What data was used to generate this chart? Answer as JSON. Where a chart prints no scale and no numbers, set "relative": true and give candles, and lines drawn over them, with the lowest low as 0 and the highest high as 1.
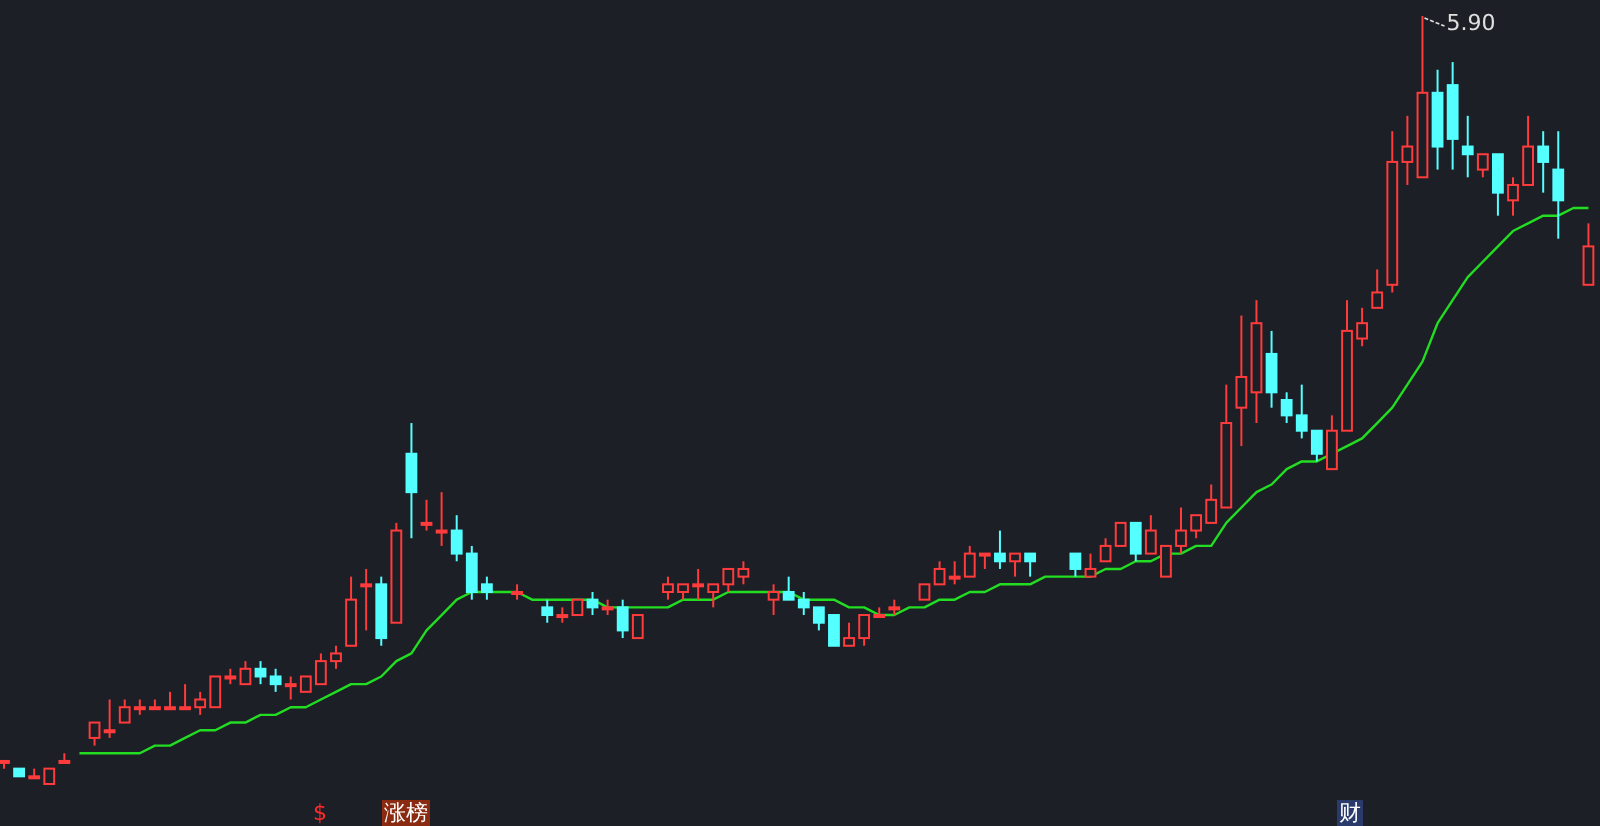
{
  "chart_data": {
    "type": "candlestick",
    "relative": true,
    "categories": [
      null,
      null,
      null,
      null,
      null,
      null,
      null,
      null,
      null,
      null,
      null,
      null,
      null,
      null,
      null,
      null,
      null,
      null,
      null,
      null,
      null,
      null,
      null,
      null,
      null,
      null,
      null,
      null,
      null,
      null,
      null,
      null,
      null,
      null,
      null,
      null,
      null,
      null,
      null,
      null,
      null,
      null,
      null,
      null,
      null,
      null,
      null,
      null,
      null,
      null,
      null,
      null,
      null,
      null,
      null,
      null,
      null,
      null,
      null,
      null,
      null,
      null,
      null,
      null,
      null,
      null,
      null,
      null,
      null,
      null,
      null,
      null,
      null,
      null,
      null,
      null,
      null,
      null,
      null,
      null,
      null,
      null,
      null,
      null,
      null,
      null,
      null,
      null,
      null,
      null,
      null,
      null,
      null,
      null,
      null,
      null,
      null,
      null,
      null,
      null,
      null,
      null,
      null,
      null,
      null,
      null
    ],
    "ohlc": [
      [
        0.03,
        0.03,
        0.02,
        0.03
      ],
      [
        0.02,
        0.02,
        0.01,
        0.01
      ],
      [
        0.01,
        0.02,
        0.01,
        0.01
      ],
      [
        0,
        0.02,
        0,
        0.02
      ],
      [
        0.03,
        0.04,
        0.03,
        0.03
      ],
      null,
      [
        0.06,
        0.08,
        0.05,
        0.08
      ],
      [
        0.07,
        0.11,
        0.06,
        0.07
      ],
      [
        0.08,
        0.11,
        0.08,
        0.1
      ],
      [
        0.1,
        0.11,
        0.09,
        0.1
      ],
      [
        0.1,
        0.11,
        0.1,
        0.1
      ],
      [
        0.1,
        0.12,
        0.1,
        0.1
      ],
      [
        0.1,
        0.13,
        0.1,
        0.1
      ],
      [
        0.1,
        0.12,
        0.09,
        0.11
      ],
      [
        0.1,
        0.14,
        0.1,
        0.14
      ],
      [
        0.14,
        0.15,
        0.13,
        0.14
      ],
      [
        0.13,
        0.16,
        0.13,
        0.15
      ],
      [
        0.15,
        0.16,
        0.13,
        0.14
      ],
      [
        0.14,
        0.15,
        0.12,
        0.13
      ],
      [
        0.13,
        0.14,
        0.11,
        0.13
      ],
      [
        0.12,
        0.14,
        0.12,
        0.14
      ],
      [
        0.13,
        0.17,
        0.13,
        0.16
      ],
      [
        0.16,
        0.18,
        0.15,
        0.17
      ],
      [
        0.18,
        0.27,
        0.18,
        0.24
      ],
      [
        0.26,
        0.28,
        0.2,
        0.26
      ],
      [
        0.26,
        0.27,
        0.18,
        0.19
      ],
      [
        0.21,
        0.34,
        0.21,
        0.33
      ],
      [
        0.43,
        0.47,
        0.32,
        0.38
      ],
      [
        0.34,
        0.37,
        0.33,
        0.34
      ],
      [
        0.33,
        0.38,
        0.31,
        0.33
      ],
      [
        0.33,
        0.35,
        0.29,
        0.3
      ],
      [
        0.3,
        0.31,
        0.24,
        0.25
      ],
      [
        0.26,
        0.27,
        0.24,
        0.25
      ],
      null,
      [
        0.25,
        0.26,
        0.24,
        0.25
      ],
      null,
      [
        0.23,
        0.24,
        0.21,
        0.22
      ],
      [
        0.22,
        0.23,
        0.21,
        0.22
      ],
      [
        0.22,
        0.24,
        0.22,
        0.24
      ],
      [
        0.24,
        0.25,
        0.22,
        0.23
      ],
      [
        0.23,
        0.24,
        0.22,
        0.23
      ],
      [
        0.23,
        0.24,
        0.19,
        0.2
      ],
      [
        0.19,
        0.22,
        0.19,
        0.22
      ],
      null,
      [
        0.25,
        0.27,
        0.24,
        0.26
      ],
      [
        0.25,
        0.26,
        0.24,
        0.26
      ],
      [
        0.26,
        0.28,
        0.24,
        0.26
      ],
      [
        0.25,
        0.26,
        0.23,
        0.26
      ],
      [
        0.26,
        0.28,
        0.25,
        0.28
      ],
      [
        0.27,
        0.29,
        0.26,
        0.28
      ],
      null,
      [
        0.24,
        0.26,
        0.22,
        0.25
      ],
      [
        0.25,
        0.27,
        0.24,
        0.24
      ],
      [
        0.24,
        0.25,
        0.22,
        0.23
      ],
      [
        0.23,
        0.23,
        0.2,
        0.21
      ],
      [
        0.22,
        0.22,
        0.18,
        0.18
      ],
      [
        0.18,
        0.21,
        0.18,
        0.19
      ],
      [
        0.19,
        0.22,
        0.18,
        0.22
      ],
      [
        0.22,
        0.23,
        0.22,
        0.22
      ],
      [
        0.23,
        0.24,
        0.22,
        0.23
      ],
      null,
      [
        0.24,
        0.26,
        0.24,
        0.26
      ],
      [
        0.26,
        0.29,
        0.26,
        0.28
      ],
      [
        0.27,
        0.29,
        0.26,
        0.27
      ],
      [
        0.27,
        0.31,
        0.27,
        0.3
      ],
      [
        0.3,
        0.3,
        0.28,
        0.3
      ],
      [
        0.3,
        0.33,
        0.28,
        0.29
      ],
      [
        0.29,
        0.3,
        0.27,
        0.3
      ],
      [
        0.3,
        0.3,
        0.27,
        0.29
      ],
      null,
      null,
      [
        0.3,
        0.3,
        0.27,
        0.28
      ],
      [
        0.27,
        0.3,
        0.27,
        0.28
      ],
      [
        0.29,
        0.32,
        0.29,
        0.31
      ],
      [
        0.31,
        0.34,
        0.31,
        0.34
      ],
      [
        0.34,
        0.34,
        0.29,
        0.3
      ],
      [
        0.3,
        0.35,
        0.3,
        0.33
      ],
      [
        0.27,
        0.31,
        0.27,
        0.31
      ],
      [
        0.31,
        0.36,
        0.3,
        0.33
      ],
      [
        0.33,
        0.35,
        0.32,
        0.35
      ],
      [
        0.34,
        0.39,
        0.34,
        0.37
      ],
      [
        0.36,
        0.52,
        0.36,
        0.47
      ],
      [
        0.49,
        0.61,
        0.44,
        0.53
      ],
      [
        0.51,
        0.63,
        0.47,
        0.6
      ],
      [
        0.56,
        0.59,
        0.49,
        0.51
      ],
      [
        0.5,
        0.51,
        0.47,
        0.48
      ],
      [
        0.48,
        0.52,
        0.45,
        0.46
      ],
      [
        0.46,
        0.46,
        0.42,
        0.43
      ],
      [
        0.41,
        0.48,
        0.41,
        0.46
      ],
      [
        0.46,
        0.63,
        0.46,
        0.59
      ],
      [
        0.58,
        0.62,
        0.57,
        0.6
      ],
      [
        0.62,
        0.67,
        0.62,
        0.64
      ],
      [
        0.65,
        0.85,
        0.64,
        0.81
      ],
      [
        0.81,
        0.87,
        0.78,
        0.83
      ],
      [
        0.79,
        1,
        0.79,
        0.9
      ],
      [
        0.9,
        0.93,
        0.8,
        0.83
      ],
      [
        0.91,
        0.94,
        0.8,
        0.84
      ],
      [
        0.83,
        0.87,
        0.79,
        0.82
      ],
      [
        0.8,
        0.82,
        0.79,
        0.82
      ],
      [
        0.82,
        0.82,
        0.74,
        0.77
      ],
      [
        0.76,
        0.79,
        0.74,
        0.78
      ],
      [
        0.78,
        0.87,
        0.78,
        0.83
      ],
      [
        0.83,
        0.85,
        0.77,
        0.81
      ],
      [
        0.8,
        0.85,
        0.71,
        0.76
      ],
      null,
      [
        0.65,
        0.73,
        0.65,
        0.7
      ]
    ],
    "series": [
      {
        "type": "line",
        "color": "#22dd22",
        "values": [
          null,
          null,
          null,
          null,
          null,
          0.04,
          0.04,
          0.04,
          0.04,
          0.04,
          0.05,
          0.05,
          0.06,
          0.07,
          0.07,
          0.08,
          0.08,
          0.09,
          0.09,
          0.1,
          0.1,
          0.11,
          0.12,
          0.13,
          0.13,
          0.14,
          0.16,
          0.17,
          0.2,
          0.22,
          0.24,
          0.25,
          0.25,
          0.25,
          0.25,
          0.24,
          0.24,
          0.24,
          0.24,
          0.24,
          0.23,
          0.23,
          0.23,
          0.23,
          0.23,
          0.24,
          0.24,
          0.24,
          0.25,
          0.25,
          0.25,
          0.25,
          0.25,
          0.24,
          0.24,
          0.24,
          0.23,
          0.23,
          0.22,
          0.22,
          0.23,
          0.23,
          0.24,
          0.24,
          0.25,
          0.25,
          0.26,
          0.26,
          0.26,
          0.27,
          0.27,
          0.27,
          0.27,
          0.28,
          0.28,
          0.29,
          0.29,
          0.3,
          0.3,
          0.31,
          0.31,
          0.34,
          0.36,
          0.38,
          0.39,
          0.41,
          0.42,
          0.42,
          0.43,
          0.44,
          0.45,
          0.47,
          0.49,
          0.52,
          0.55,
          0.6,
          0.63,
          0.66,
          0.68,
          0.7,
          0.72,
          0.73,
          0.74,
          0.74,
          0.75,
          0.75
        ]
      }
    ],
    "annotations": [
      "5.90",
      "$",
      "涨榜",
      "财"
    ]
  }
}
